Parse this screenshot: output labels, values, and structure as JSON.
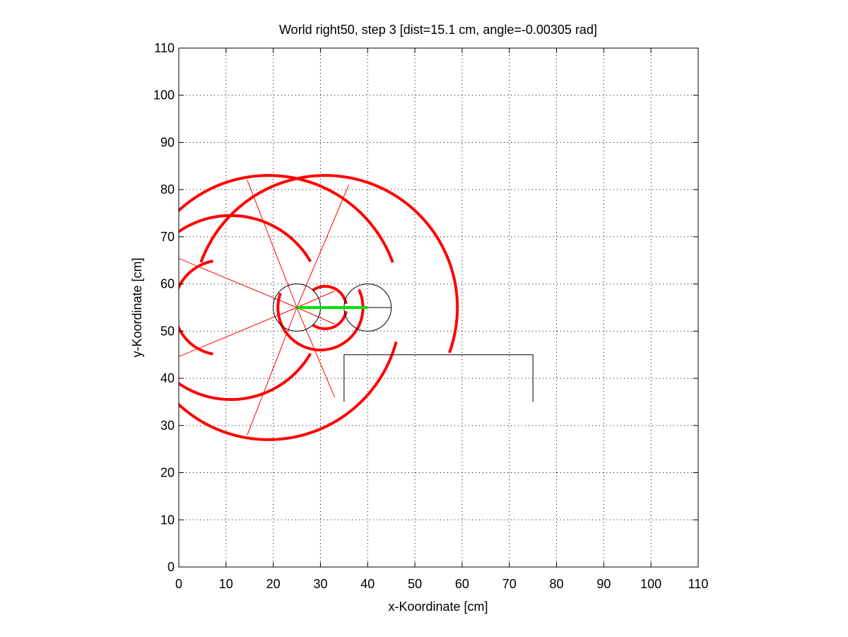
{
  "chart_data": {
    "type": "line",
    "title": "World right50, step 3 [dist=15.1 cm, angle=-0.00305 rad]",
    "xlabel": "x-Koordinate [cm]",
    "ylabel": "y-Koordinate [cm]",
    "xlim": [
      0,
      110
    ],
    "ylim": [
      0,
      110
    ],
    "xticks": [
      0,
      10,
      20,
      30,
      40,
      50,
      60,
      70,
      80,
      90,
      100,
      110
    ],
    "yticks": [
      0,
      10,
      20,
      30,
      40,
      50,
      60,
      70,
      80,
      90,
      100,
      110
    ],
    "xtick_labels": [
      "0",
      "10",
      "20",
      "30",
      "40",
      "50",
      "60",
      "70",
      "80",
      "90",
      "100",
      "110"
    ],
    "ytick_labels": [
      "0",
      "10",
      "20",
      "30",
      "40",
      "50",
      "60",
      "70",
      "80",
      "90",
      "100",
      "110"
    ],
    "grid": true,
    "colors": {
      "sensor_arc": "#ff0000",
      "sensor_ray": "#ff0000",
      "heading": "#00e000",
      "robot": "#000000",
      "wall": "#000000"
    },
    "robot_circles": [
      {
        "name": "robot-start",
        "cx": 25,
        "cy": 55,
        "r": 5
      },
      {
        "name": "robot-current",
        "cx": 40,
        "cy": 55,
        "r": 5
      }
    ],
    "heading_line": {
      "x": [
        25,
        40
      ],
      "y": [
        55,
        55
      ]
    },
    "robot_direction_line": {
      "x": [
        40,
        45
      ],
      "y": [
        55,
        55
      ]
    },
    "wall": {
      "x": [
        35,
        35,
        75,
        75
      ],
      "y": [
        35,
        45,
        45,
        35
      ]
    },
    "sensor_rays": [
      {
        "x": [
          25,
          0
        ],
        "y": [
          55,
          65.4
        ]
      },
      {
        "x": [
          25,
          0
        ],
        "y": [
          55,
          44.6
        ]
      },
      {
        "x": [
          25,
          14.5
        ],
        "y": [
          55,
          82
        ]
      },
      {
        "x": [
          25,
          14.5
        ],
        "y": [
          55,
          28
        ]
      },
      {
        "x": [
          25,
          36
        ],
        "y": [
          55,
          81
        ]
      },
      {
        "x": [
          25,
          33
        ],
        "y": [
          55,
          36
        ]
      },
      {
        "x": [
          25,
          33
        ],
        "y": [
          55,
          58.5
        ]
      },
      {
        "x": [
          25,
          33
        ],
        "y": [
          55,
          51.5
        ]
      }
    ],
    "sensor_arcs": [
      {
        "cx": 19,
        "cy": 55,
        "r": 28,
        "a0": 180,
        "a1": 20
      },
      {
        "cx": 31,
        "cy": 55,
        "r": 28,
        "a0": 160,
        "a1": -20
      },
      {
        "cx": 19,
        "cy": 55,
        "r": 28,
        "a0": 205,
        "a1": 345
      },
      {
        "cx": 11,
        "cy": 55,
        "r": 19.5,
        "a0": 180,
        "a1": 30
      },
      {
        "cx": 11,
        "cy": 55,
        "r": 19.5,
        "a0": 175,
        "a1": 330
      },
      {
        "cx": 9,
        "cy": 55,
        "r": 10,
        "a0": 100,
        "a1": 260
      },
      {
        "cx": 30,
        "cy": 55,
        "r": 9,
        "a0": 160,
        "a1": 385
      },
      {
        "cx": 31,
        "cy": 55,
        "r": 4.5,
        "a0": 125,
        "a1": 10
      },
      {
        "cx": 31,
        "cy": 55,
        "r": 4.5,
        "a0": 235,
        "a1": 350
      }
    ]
  }
}
